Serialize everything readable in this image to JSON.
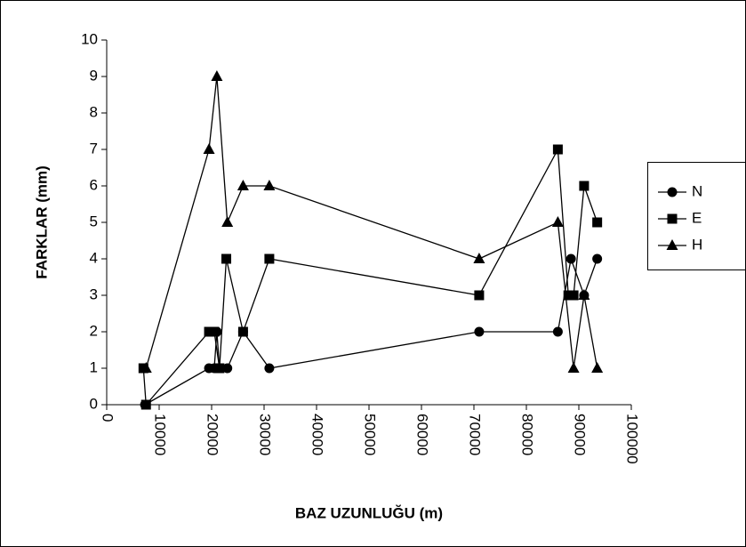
{
  "chart_data": {
    "type": "line",
    "xlabel": "BAZ UZUNLUĞU (m)",
    "ylabel": "FARKLAR (mm)",
    "xlim": [
      0,
      100000
    ],
    "xticks": [
      0,
      10000,
      20000,
      30000,
      40000,
      50000,
      60000,
      70000,
      80000,
      90000,
      100000
    ],
    "ylim": [
      0,
      10
    ],
    "yticks": [
      0,
      1,
      2,
      3,
      4,
      5,
      6,
      7,
      8,
      9,
      10
    ],
    "legend": "right",
    "series": [
      {
        "name": "N",
        "color": "#000000",
        "marker": "circle",
        "x": [
          7300,
          19500,
          20500,
          21000,
          21500,
          23000,
          26000,
          31000,
          71000,
          86000,
          88500,
          91000,
          93500
        ],
        "values": [
          0,
          1,
          1,
          2,
          1,
          1,
          2,
          1,
          2,
          2,
          4,
          3,
          4
        ]
      },
      {
        "name": "E",
        "color": "#000000",
        "marker": "square",
        "x": [
          7000,
          7500,
          19500,
          20500,
          21500,
          22800,
          26000,
          31000,
          71000,
          86000,
          88000,
          89000,
          91000,
          93500
        ],
        "values": [
          1,
          0,
          2,
          2,
          1,
          4,
          2,
          4,
          3,
          7,
          3,
          3,
          6,
          5
        ]
      },
      {
        "name": "H",
        "color": "#000000",
        "marker": "triangle",
        "x": [
          7500,
          19500,
          21000,
          23000,
          26000,
          31000,
          71000,
          86000,
          89000,
          91000,
          93500
        ],
        "values": [
          1,
          7,
          9,
          5,
          6,
          6,
          4,
          5,
          1,
          3,
          1
        ]
      }
    ]
  }
}
